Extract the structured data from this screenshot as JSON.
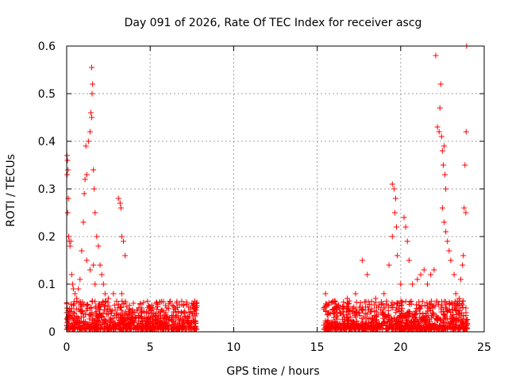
{
  "chart_data": {
    "type": "scatter",
    "title": "Day 091 of 2026, Rate Of TEC Index for receiver ascg",
    "xlabel": "GPS time / hours",
    "ylabel": "ROTI / TECUs",
    "xlim": [
      0,
      25
    ],
    "ylim": [
      0,
      0.6
    ],
    "xticks": [
      0,
      5,
      10,
      15,
      20,
      25
    ],
    "yticks": [
      0,
      0.1,
      0.2,
      0.3,
      0.4,
      0.5,
      0.6
    ],
    "xtick_labels": [
      "0",
      "5",
      "10",
      "15",
      "20",
      "25"
    ],
    "ytick_labels": [
      "0",
      "0.1",
      "0.2",
      "0.3",
      "0.4",
      "0.5",
      "0.6"
    ],
    "grid": true,
    "marker": "+",
    "series": [
      {
        "name": "ROTI",
        "color": "#ff0000",
        "points": [
          [
            0.02,
            0.37
          ],
          [
            0.05,
            0.36
          ],
          [
            0.08,
            0.34
          ],
          [
            0.03,
            0.33
          ],
          [
            0.1,
            0.28
          ],
          [
            0.06,
            0.25
          ],
          [
            0.12,
            0.2
          ],
          [
            0.15,
            0.19
          ],
          [
            0.2,
            0.18
          ],
          [
            0.25,
            0.19
          ],
          [
            0.3,
            0.12
          ],
          [
            0.35,
            0.1
          ],
          [
            0.4,
            0.09
          ],
          [
            0.5,
            0.08
          ],
          [
            0.6,
            0.07
          ],
          [
            0.7,
            0.09
          ],
          [
            0.8,
            0.11
          ],
          [
            0.9,
            0.17
          ],
          [
            1.0,
            0.23
          ],
          [
            1.05,
            0.29
          ],
          [
            1.1,
            0.32
          ],
          [
            1.2,
            0.33
          ],
          [
            1.15,
            0.39
          ],
          [
            1.3,
            0.4
          ],
          [
            1.4,
            0.42
          ],
          [
            1.45,
            0.46
          ],
          [
            1.5,
            0.45
          ],
          [
            1.52,
            0.5
          ],
          [
            1.55,
            0.52
          ],
          [
            1.5,
            0.555
          ],
          [
            1.6,
            0.34
          ],
          [
            1.65,
            0.3
          ],
          [
            1.7,
            0.25
          ],
          [
            1.8,
            0.2
          ],
          [
            1.9,
            0.18
          ],
          [
            2.0,
            0.14
          ],
          [
            2.1,
            0.12
          ],
          [
            2.2,
            0.1
          ],
          [
            2.3,
            0.08
          ],
          [
            1.2,
            0.15
          ],
          [
            1.4,
            0.13
          ],
          [
            1.6,
            0.14
          ],
          [
            1.7,
            0.1
          ],
          [
            3.1,
            0.28
          ],
          [
            3.2,
            0.27
          ],
          [
            3.25,
            0.26
          ],
          [
            3.3,
            0.2
          ],
          [
            3.4,
            0.19
          ],
          [
            3.5,
            0.16
          ],
          [
            3.3,
            0.08
          ],
          [
            3.5,
            0.06
          ],
          [
            2.8,
            0.08
          ],
          [
            2.5,
            0.07
          ],
          [
            4.0,
            0.06
          ],
          [
            4.5,
            0.05
          ],
          [
            5.0,
            0.05
          ],
          [
            5.5,
            0.04
          ],
          [
            6.0,
            0.05
          ],
          [
            6.5,
            0.05
          ],
          [
            7.0,
            0.04
          ],
          [
            7.5,
            0.06
          ],
          [
            7.7,
            0.05
          ],
          [
            15.5,
            0.08
          ],
          [
            15.7,
            0.04
          ],
          [
            16.0,
            0.03
          ],
          [
            16.8,
            0.07
          ],
          [
            17.3,
            0.08
          ],
          [
            17.7,
            0.15
          ],
          [
            18.0,
            0.12
          ],
          [
            18.5,
            0.07
          ],
          [
            19.0,
            0.08
          ],
          [
            19.3,
            0.14
          ],
          [
            19.5,
            0.31
          ],
          [
            19.6,
            0.3
          ],
          [
            19.7,
            0.28
          ],
          [
            19.65,
            0.25
          ],
          [
            19.75,
            0.22
          ],
          [
            19.5,
            0.2
          ],
          [
            19.8,
            0.16
          ],
          [
            20.0,
            0.1
          ],
          [
            20.2,
            0.24
          ],
          [
            20.3,
            0.22
          ],
          [
            20.4,
            0.19
          ],
          [
            20.5,
            0.15
          ],
          [
            20.7,
            0.1
          ],
          [
            21.0,
            0.11
          ],
          [
            21.2,
            0.12
          ],
          [
            21.4,
            0.13
          ],
          [
            21.6,
            0.1
          ],
          [
            21.8,
            0.12
          ],
          [
            22.0,
            0.13
          ],
          [
            22.1,
            0.58
          ],
          [
            22.2,
            0.43
          ],
          [
            22.3,
            0.42
          ],
          [
            22.4,
            0.52
          ],
          [
            22.35,
            0.47
          ],
          [
            22.45,
            0.41
          ],
          [
            22.5,
            0.38
          ],
          [
            22.55,
            0.35
          ],
          [
            22.6,
            0.39
          ],
          [
            22.65,
            0.33
          ],
          [
            22.7,
            0.3
          ],
          [
            22.5,
            0.26
          ],
          [
            22.6,
            0.23
          ],
          [
            22.7,
            0.21
          ],
          [
            22.8,
            0.19
          ],
          [
            22.9,
            0.17
          ],
          [
            23.0,
            0.15
          ],
          [
            23.2,
            0.12
          ],
          [
            23.3,
            0.08
          ],
          [
            23.5,
            0.07
          ],
          [
            23.6,
            0.11
          ],
          [
            23.7,
            0.14
          ],
          [
            23.75,
            0.16
          ],
          [
            23.8,
            0.26
          ],
          [
            23.85,
            0.35
          ],
          [
            23.9,
            0.25
          ],
          [
            23.92,
            0.42
          ],
          [
            23.95,
            0.6
          ],
          [
            23.9,
            0.05
          ]
        ]
      }
    ]
  }
}
